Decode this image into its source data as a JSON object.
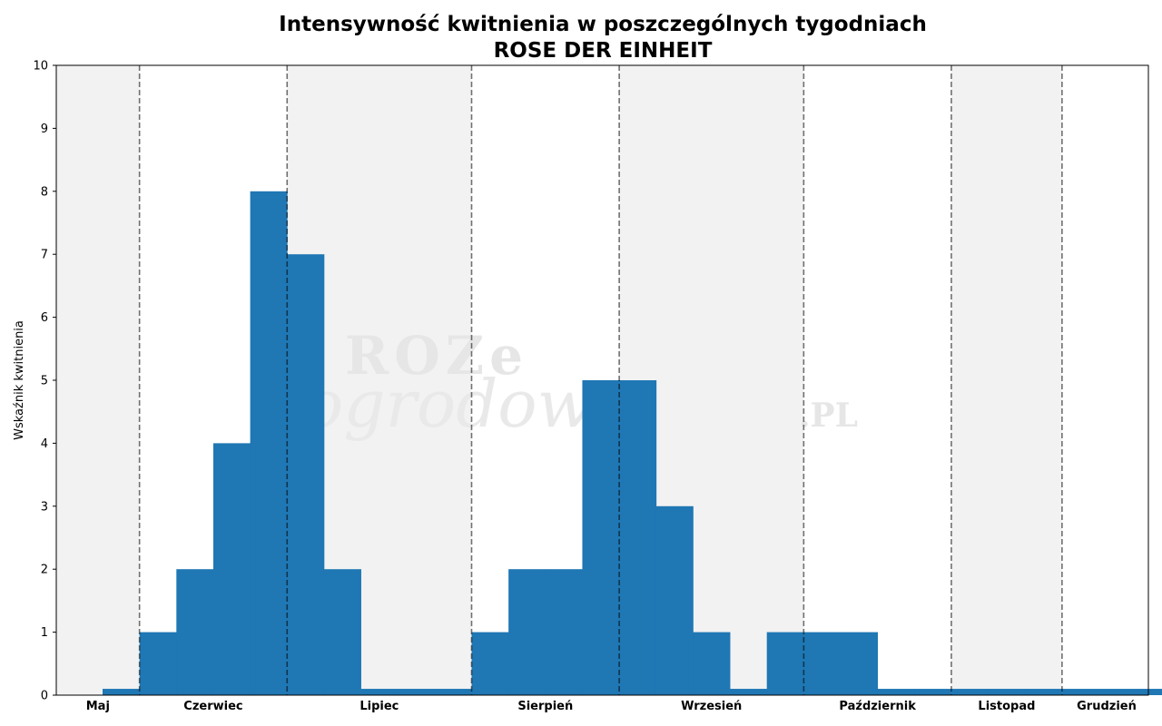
{
  "chart_data": {
    "type": "bar",
    "title": "Intensywność kwitnienia w poszczególnych tygodniach",
    "subtitle": "ROSE DER EINHEIT",
    "ylabel": "Wskaźnik kwitnienia",
    "ylim": [
      0,
      10
    ],
    "yticks": [
      0,
      1,
      2,
      3,
      4,
      5,
      6,
      7,
      8,
      9,
      10
    ],
    "weeks_shown": 30,
    "values": [
      0.1,
      1,
      2,
      4,
      8,
      7,
      2,
      0.1,
      0.1,
      0.1,
      1,
      2,
      2,
      5,
      5,
      3,
      1,
      0.1,
      1,
      1,
      1,
      0.1,
      0.1,
      0.1,
      0.1,
      0.1,
      0.1,
      0.1,
      0.1,
      0.1
    ],
    "months": [
      {
        "name": "Maj",
        "start": 0,
        "end": 1
      },
      {
        "name": "Czerwiec",
        "start": 1,
        "end": 5
      },
      {
        "name": "Lipiec",
        "start": 5,
        "end": 10
      },
      {
        "name": "Sierpień",
        "start": 10,
        "end": 14
      },
      {
        "name": "Wrzesień",
        "start": 14,
        "end": 19
      },
      {
        "name": "Październik",
        "start": 19,
        "end": 23
      },
      {
        "name": "Listopad",
        "start": 23,
        "end": 26
      },
      {
        "name": "Grudzień",
        "start": 26,
        "end": 30
      }
    ],
    "bar_color": "#1f77b4",
    "shade_color": "#f2f2f2",
    "grid": false
  },
  "watermark": {
    "line1": "ROZe",
    "line2": "ogrodowe",
    "line3": ".PL"
  }
}
